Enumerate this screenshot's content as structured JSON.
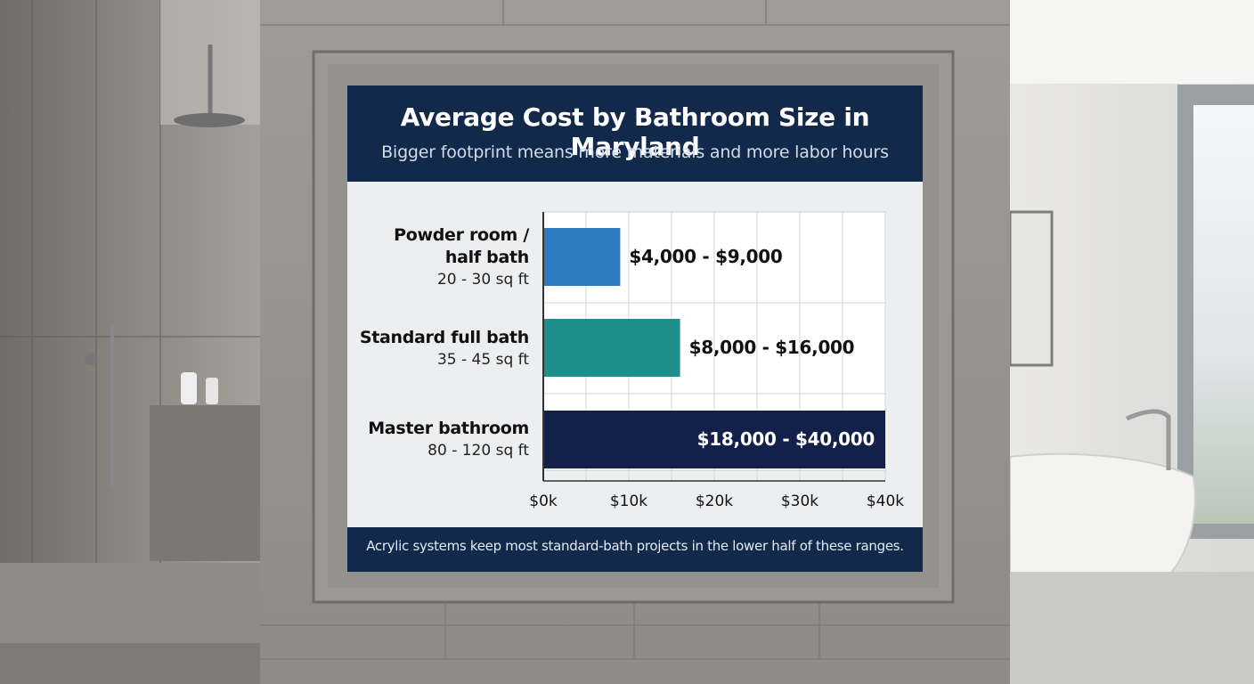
{
  "colors": {
    "banner": "#13294b",
    "panel": "#eceef0",
    "bar_light_blue": "#2e7cc0",
    "bar_teal": "#1d8f8c",
    "bar_navy": "#13214a"
  },
  "chart_data": {
    "type": "bar",
    "orientation": "horizontal",
    "title": "Average Cost by Bathroom Size in Maryland",
    "subtitle": "Bigger footprint means more materials and more labor hours",
    "categories": [
      {
        "name_lines": [
          "Powder room /",
          "half bath"
        ],
        "size": "20 - 30 sq ft"
      },
      {
        "name_lines": [
          "Standard full bath"
        ],
        "size": "35 - 45 sq ft"
      },
      {
        "name_lines": [
          "Master bathroom"
        ],
        "size": "80 - 120 sq ft"
      }
    ],
    "ranges": [
      [
        4000,
        9000
      ],
      [
        8000,
        16000
      ],
      [
        18000,
        40000
      ]
    ],
    "value_labels": [
      "$4,000 - $9,000",
      "$8,000 - $16,000",
      "$18,000 - $40,000"
    ],
    "bar_colors": [
      "#2e7cc0",
      "#1d8f8c",
      "#13214a"
    ],
    "xlim": [
      0,
      40000
    ],
    "xticks": [
      0,
      10000,
      20000,
      30000,
      40000
    ],
    "xtick_labels": [
      "$0k",
      "$10k",
      "$20k",
      "$30k",
      "$40k"
    ],
    "grid": true,
    "footnote": "Acrylic systems keep most standard-bath projects in the lower half of these ranges."
  }
}
